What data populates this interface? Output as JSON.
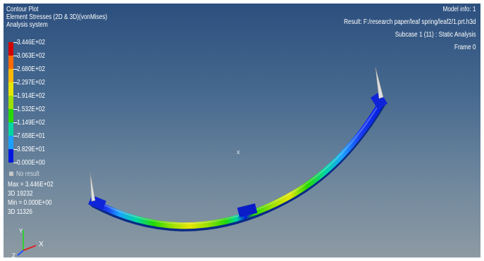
{
  "header": {
    "plot_type": "Contour Plot",
    "result_type": "Element Stresses (2D & 3D)(vonMises)",
    "system": "Analysis system"
  },
  "model_info": {
    "model": "Model info: 1",
    "result": "Result: F:/research paper/leaf spring/leaf2/1.prt.h3d",
    "subcase": "Subcase 1 (11) : Static Analysis",
    "frame": "Frame 0"
  },
  "legend": {
    "labels": [
      "3.446E+02",
      "3.063E+02",
      "2.680E+02",
      "2.297E+02",
      "1.914E+02",
      "1.532E+02",
      "1.149E+02",
      "7.658E+01",
      "3.829E+01",
      "0.000E+00"
    ],
    "colors": [
      "#d40000",
      "#ff6a00",
      "#ffb800",
      "#e6e600",
      "#9be000",
      "#27d800",
      "#00d6a0",
      "#1aa0ff",
      "#0018e0"
    ],
    "no_result": "No result"
  },
  "stats": {
    "max": "Max = 3.446E+02",
    "max_elem": "3D 19232",
    "min": "Min = 0.000E+00",
    "min_elem": "3D 11326"
  },
  "center_marker": "x",
  "triad": {
    "x_label": "X",
    "y_label": "Y",
    "z_label": "Z"
  },
  "colors": {
    "bg_top": "#2c4f7e",
    "bg_bottom": "#8d9aa3",
    "text": "#ffffff"
  }
}
